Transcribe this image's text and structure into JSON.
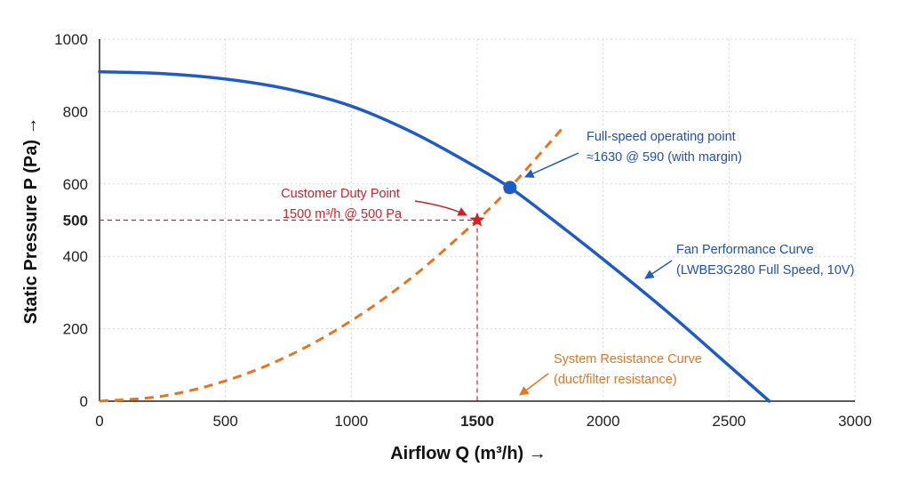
{
  "chart_data": {
    "type": "line",
    "xlabel": "Airflow Q (m³/h) →",
    "ylabel": "Static Pressure P (Pa) →",
    "xlim": [
      0,
      3000
    ],
    "ylim": [
      0,
      1000
    ],
    "x_ticks": [
      "0",
      "500",
      "1000",
      "1500",
      "2000",
      "2500",
      "3000"
    ],
    "y_ticks": [
      "0",
      "200",
      "400",
      "500",
      "600",
      "800",
      "1000"
    ],
    "grid": true,
    "series": [
      {
        "id": "fan",
        "label_lines": [
          "Fan Performance Curve",
          "(LWBE3G280 Full Speed, 10V)"
        ],
        "color": "#1f5bc4",
        "style": "solid",
        "x": [
          0,
          250,
          500,
          750,
          1000,
          1250,
          1500,
          1630,
          1750,
          2000,
          2250,
          2500,
          2660
        ],
        "y": [
          910,
          905,
          890,
          862,
          815,
          740,
          645,
          590,
          528,
          392,
          250,
          98,
          0
        ]
      },
      {
        "id": "system",
        "label_lines": [
          "System Resistance Curve",
          "(duct/filter resistance)"
        ],
        "color": "#e8741e",
        "style": "dashed",
        "x": [
          0,
          250,
          500,
          750,
          1000,
          1250,
          1500,
          1630,
          1840
        ],
        "y": [
          0,
          14,
          56,
          125,
          222,
          347,
          500,
          590,
          755
        ]
      }
    ],
    "points": [
      {
        "id": "duty",
        "x": 1500,
        "y": 500,
        "marker": "star",
        "color": "#d41f28",
        "label_lines": [
          "Customer Duty Point",
          "1500 m³/h @ 500 Pa"
        ]
      },
      {
        "id": "op",
        "x": 1630,
        "y": 590,
        "marker": "circle",
        "color": "#1f5bc4",
        "label_lines": [
          "Full-speed operating point",
          "≈1630 @ 590 (with margin)"
        ]
      }
    ],
    "highlight": {
      "x": "1500",
      "y": "500",
      "color": "#d41f28"
    }
  }
}
